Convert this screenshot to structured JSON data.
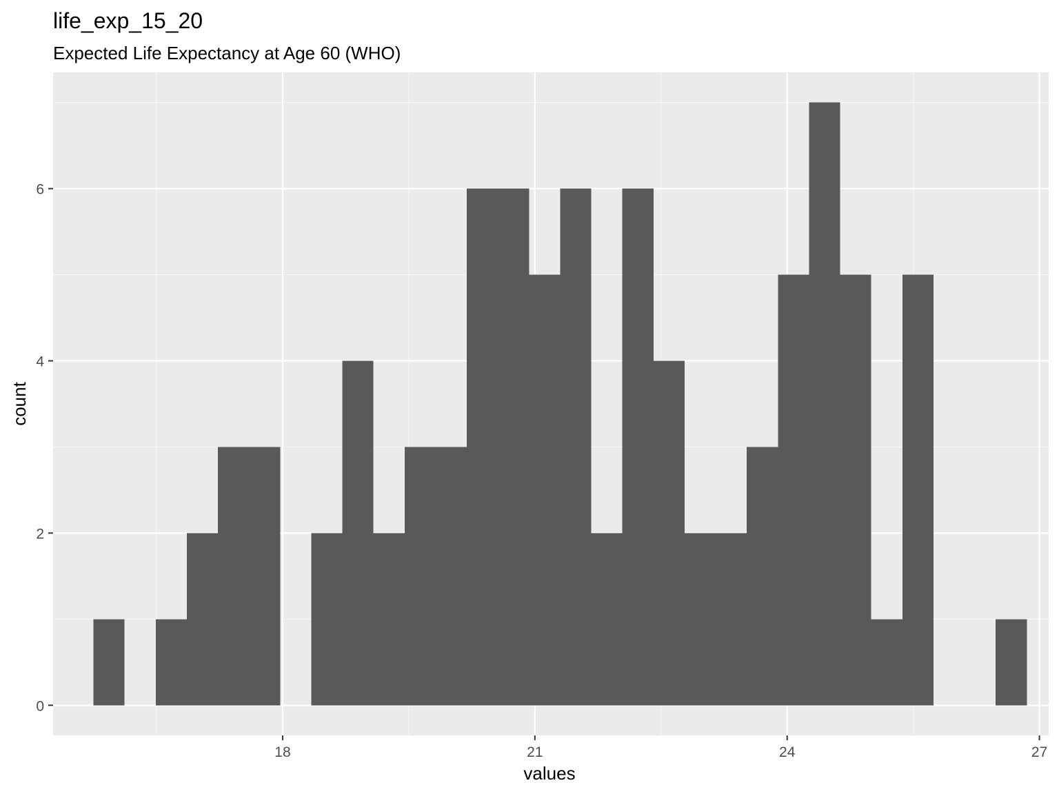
{
  "chart_data": {
    "type": "histogram",
    "title": "life_exp_15_20",
    "subtitle": "Expected Life Expectancy at Age 60 (WHO)",
    "xlabel": "values",
    "ylabel": "count",
    "xlim": [
      15.27,
      27.11
    ],
    "ylim": [
      -0.35,
      7.35
    ],
    "x_ticks": [
      18,
      21,
      24,
      27
    ],
    "y_ticks": [
      0,
      2,
      4,
      6
    ],
    "bin_width": 0.37,
    "bins": [
      {
        "x0": 15.75,
        "x1": 16.12,
        "count": 1
      },
      {
        "x0": 16.12,
        "x1": 16.49,
        "count": 0
      },
      {
        "x0": 16.49,
        "x1": 16.86,
        "count": 1
      },
      {
        "x0": 16.86,
        "x1": 17.23,
        "count": 2
      },
      {
        "x0": 17.23,
        "x1": 17.6,
        "count": 3
      },
      {
        "x0": 17.6,
        "x1": 17.97,
        "count": 3
      },
      {
        "x0": 17.97,
        "x1": 18.34,
        "count": 0
      },
      {
        "x0": 18.34,
        "x1": 18.71,
        "count": 2
      },
      {
        "x0": 18.71,
        "x1": 19.08,
        "count": 4
      },
      {
        "x0": 19.08,
        "x1": 19.45,
        "count": 2
      },
      {
        "x0": 19.45,
        "x1": 19.82,
        "count": 3
      },
      {
        "x0": 19.82,
        "x1": 20.19,
        "count": 3
      },
      {
        "x0": 20.19,
        "x1": 20.56,
        "count": 6
      },
      {
        "x0": 20.56,
        "x1": 20.93,
        "count": 6
      },
      {
        "x0": 20.93,
        "x1": 21.3,
        "count": 5
      },
      {
        "x0": 21.3,
        "x1": 21.67,
        "count": 6
      },
      {
        "x0": 21.67,
        "x1": 22.04,
        "count": 2
      },
      {
        "x0": 22.04,
        "x1": 22.41,
        "count": 6
      },
      {
        "x0": 22.41,
        "x1": 22.78,
        "count": 4
      },
      {
        "x0": 22.78,
        "x1": 23.15,
        "count": 2
      },
      {
        "x0": 23.15,
        "x1": 23.52,
        "count": 2
      },
      {
        "x0": 23.52,
        "x1": 23.89,
        "count": 3
      },
      {
        "x0": 23.89,
        "x1": 24.26,
        "count": 5
      },
      {
        "x0": 24.26,
        "x1": 24.63,
        "count": 7
      },
      {
        "x0": 24.63,
        "x1": 25.0,
        "count": 5
      },
      {
        "x0": 25.0,
        "x1": 25.37,
        "count": 1
      },
      {
        "x0": 25.37,
        "x1": 25.74,
        "count": 5
      },
      {
        "x0": 25.74,
        "x1": 26.11,
        "count": 0
      },
      {
        "x0": 26.11,
        "x1": 26.48,
        "count": 0
      },
      {
        "x0": 26.48,
        "x1": 26.85,
        "count": 1
      }
    ],
    "grid": true,
    "colors": {
      "panel_background": "#ebebeb",
      "grid_major": "#ffffff",
      "grid_minor": "#f5f5f5",
      "bar_fill": "#595959",
      "tick_label": "#4d4d4d",
      "tick_mark": "#333333"
    }
  }
}
